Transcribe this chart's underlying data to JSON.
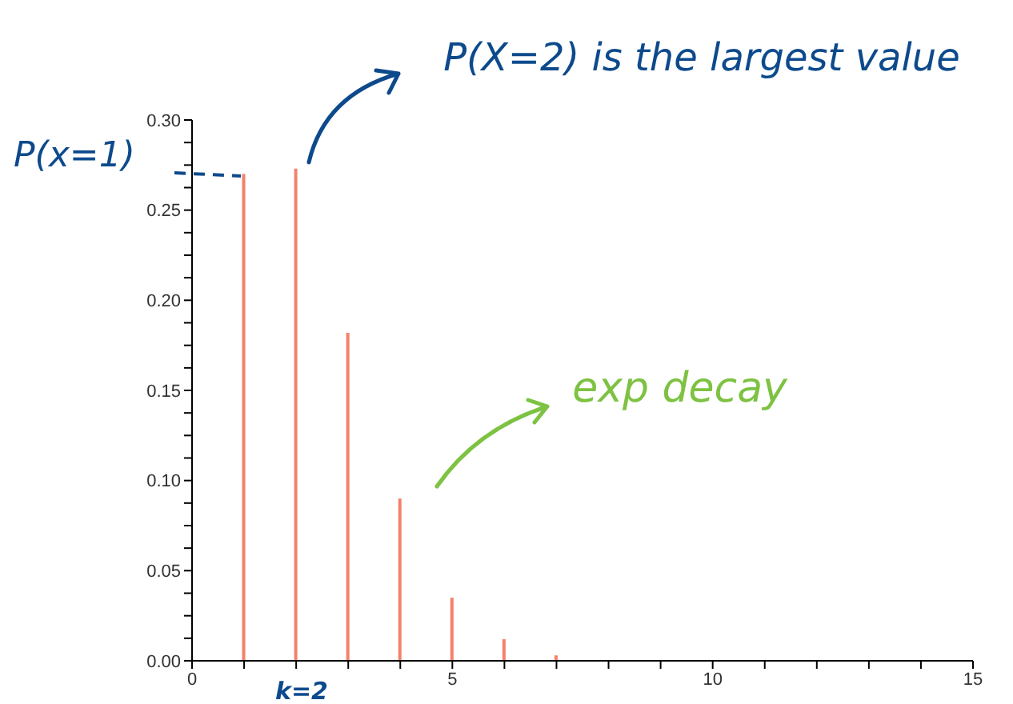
{
  "chart_data": {
    "type": "bar",
    "x": [
      1,
      2,
      3,
      4,
      5,
      6,
      7
    ],
    "values": [
      0.27,
      0.273,
      0.182,
      0.09,
      0.035,
      0.012,
      0.003
    ],
    "color": "#f4816a",
    "xlim": [
      0,
      15
    ],
    "xticks": [
      0,
      {
        "value": 1,
        "label": null
      },
      {
        "value": 2,
        "label": null
      },
      {
        "value": 3,
        "label": null
      },
      {
        "value": 4,
        "label": null
      },
      5,
      {
        "value": 6,
        "label": null
      },
      {
        "value": 7,
        "label": null
      },
      {
        "value": 8,
        "label": null
      },
      {
        "value": 9,
        "label": null
      },
      10,
      {
        "value": 11,
        "label": null
      },
      {
        "value": 12,
        "label": null
      },
      {
        "value": 13,
        "label": null
      },
      {
        "value": 14,
        "label": null
      },
      15
    ],
    "ylim": [
      0,
      0.3
    ],
    "yticks": [
      {
        "value": 0,
        "label": "0.00"
      },
      {
        "value": 0.0125,
        "label": null
      },
      {
        "value": 0.025,
        "label": null
      },
      {
        "value": 0.0375,
        "label": null
      },
      {
        "value": 0.05,
        "label": "0.05"
      },
      {
        "value": 0.0625,
        "label": null
      },
      {
        "value": 0.075,
        "label": null
      },
      {
        "value": 0.0875,
        "label": null
      },
      {
        "value": 0.1,
        "label": "0.10"
      },
      {
        "value": 0.1125,
        "label": null
      },
      {
        "value": 0.125,
        "label": null
      },
      {
        "value": 0.1375,
        "label": null
      },
      {
        "value": 0.15,
        "label": "0.15"
      },
      {
        "value": 0.1625,
        "label": null
      },
      {
        "value": 0.175,
        "label": null
      },
      {
        "value": 0.1875,
        "label": null
      },
      {
        "value": 0.2,
        "label": "0.20"
      },
      {
        "value": 0.2125,
        "label": null
      },
      {
        "value": 0.225,
        "label": null
      },
      {
        "value": 0.2375,
        "label": null
      },
      {
        "value": 0.25,
        "label": "0.25"
      },
      {
        "value": 0.2625,
        "label": null
      },
      {
        "value": 0.275,
        "label": null
      },
      {
        "value": 0.2875,
        "label": null
      },
      {
        "value": 0.3,
        "label": "0.30"
      }
    ],
    "annotations": [
      {
        "text": "P(x=1)",
        "x": 1,
        "y": 0.27
      },
      {
        "text": "P(X=2) is the largest value",
        "x": 2,
        "y": 0.273
      },
      "k=2",
      "exp decay"
    ]
  }
}
